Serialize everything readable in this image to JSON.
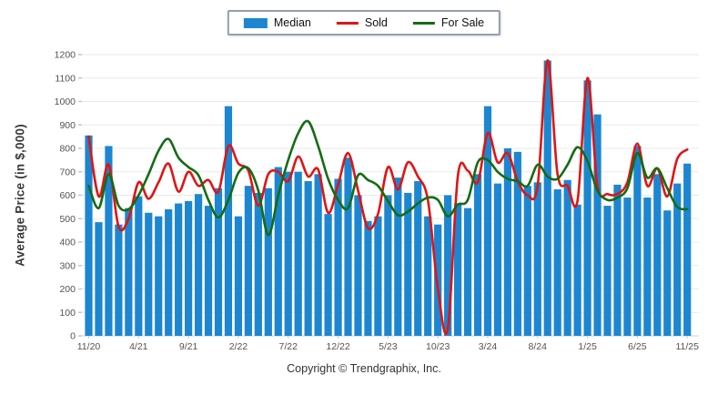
{
  "footer": {
    "copyright": "Copyright © Trendgraphix, Inc."
  },
  "chart_data": {
    "type": "bar+line",
    "title": "",
    "ylabel": "Average Price (in $,000)",
    "xlabel": "",
    "ylim": [
      0,
      1200
    ],
    "ytick_step": 100,
    "x_label_every": 5,
    "grid": true,
    "legend_position": "top-center",
    "background": "#ffffff",
    "grid_color": "#e9e9e9",
    "axis_text_color": "#56514b",
    "tick_color": "#b9c9da",
    "categories": [
      "11/20",
      "12/20",
      "1/21",
      "2/21",
      "3/21",
      "4/21",
      "5/21",
      "6/21",
      "7/21",
      "8/21",
      "9/21",
      "10/21",
      "11/21",
      "12/21",
      "1/22",
      "2/22",
      "3/22",
      "4/22",
      "5/22",
      "6/22",
      "7/22",
      "8/22",
      "9/22",
      "10/22",
      "11/22",
      "12/22",
      "1/23",
      "2/23",
      "3/23",
      "4/23",
      "5/23",
      "6/23",
      "7/23",
      "8/23",
      "9/23",
      "10/23",
      "11/23",
      "12/23",
      "1/24",
      "2/24",
      "3/24",
      "4/24",
      "5/24",
      "6/24",
      "7/24",
      "8/24",
      "9/24",
      "10/24",
      "11/24",
      "12/24",
      "1/25",
      "2/25",
      "3/25",
      "4/25",
      "5/25",
      "6/25",
      "7/25",
      "8/25",
      "9/25",
      "10/25",
      "11/25"
    ],
    "series": [
      {
        "name": "Median",
        "type": "bar",
        "color": "#1c86d1",
        "values": [
          855,
          485,
          810,
          475,
          545,
          595,
          525,
          510,
          540,
          565,
          575,
          605,
          555,
          630,
          980,
          510,
          640,
          610,
          630,
          720,
          700,
          700,
          660,
          690,
          520,
          670,
          760,
          600,
          490,
          510,
          600,
          675,
          610,
          660,
          510,
          475,
          600,
          565,
          545,
          690,
          980,
          650,
          800,
          785,
          640,
          655,
          1175,
          625,
          665,
          560,
          1090,
          945,
          555,
          645,
          590,
          810,
          590,
          690,
          535,
          650,
          735
        ]
      },
      {
        "name": "Sold",
        "type": "line",
        "color": "#e11414",
        "values": [
          850,
          595,
          730,
          465,
          500,
          655,
          585,
          655,
          735,
          615,
          700,
          640,
          665,
          615,
          810,
          735,
          705,
          555,
          690,
          700,
          660,
          765,
          680,
          710,
          525,
          645,
          780,
          620,
          460,
          520,
          720,
          625,
          740,
          680,
          580,
          200,
          30,
          680,
          705,
          655,
          865,
          740,
          780,
          660,
          600,
          640,
          1175,
          690,
          640,
          575,
          1100,
          640,
          605,
          605,
          655,
          820,
          640,
          715,
          595,
          755,
          795
        ]
      },
      {
        "name": "For Sale",
        "type": "line",
        "color": "#146c14",
        "values": [
          640,
          545,
          690,
          555,
          540,
          600,
          690,
          790,
          840,
          760,
          720,
          685,
          580,
          505,
          580,
          695,
          715,
          620,
          430,
          600,
          750,
          865,
          915,
          810,
          670,
          580,
          545,
          685,
          665,
          640,
          575,
          515,
          530,
          565,
          590,
          580,
          510,
          560,
          580,
          740,
          750,
          700,
          670,
          660,
          640,
          730,
          680,
          670,
          730,
          805,
          745,
          620,
          580,
          590,
          630,
          780,
          675,
          715,
          630,
          550,
          540
        ]
      }
    ]
  }
}
